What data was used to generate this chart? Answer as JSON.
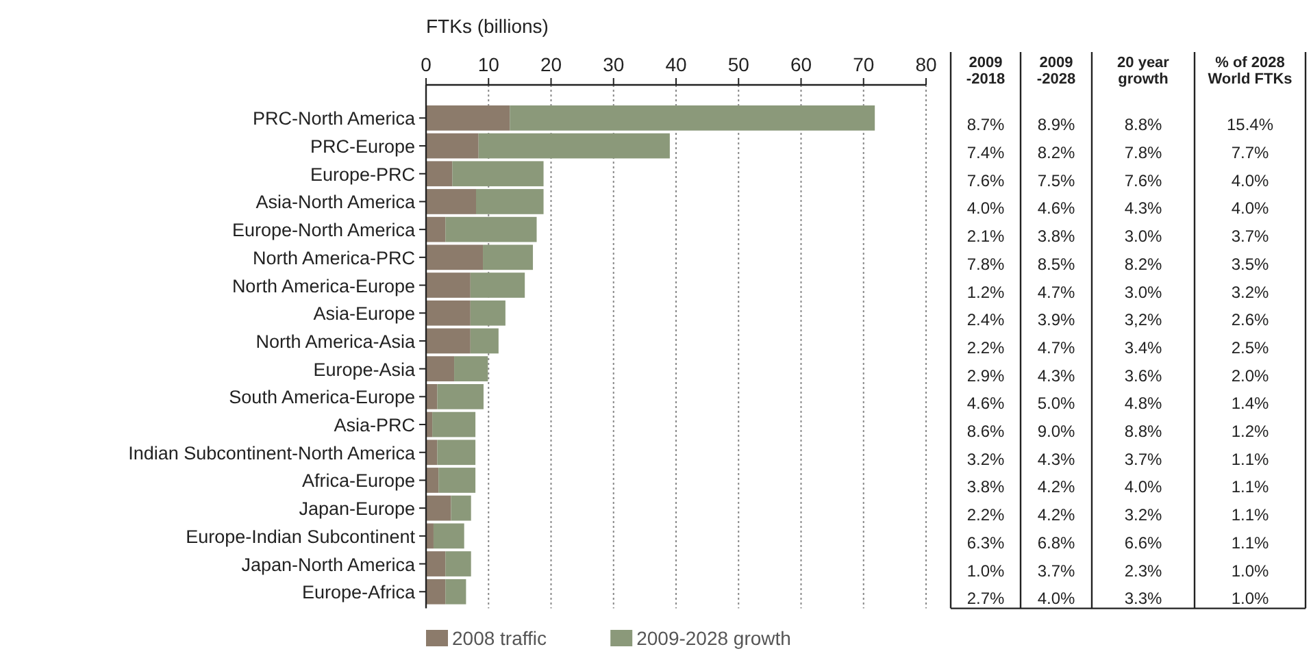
{
  "chart_data": [
    {
      "type": "bar",
      "orientation": "horizontal",
      "stacked": true,
      "xlabel": "FTKs (billions)",
      "categories": [
        "PRC-North America",
        "PRC-Europe",
        "Europe-PRC",
        "Asia-North America",
        "Europe-North America",
        "North America-PRC",
        "North America-Europe",
        "Asia-Europe",
        "North America-Asia",
        "Europe-Asia",
        "South America-Europe",
        "Asia-PRC",
        "Indian Subcontinent-North America",
        "Africa-Europe",
        "Japan-Europe",
        "Europe-Indian Subcontinent",
        "Japan-North America",
        "Europe-Africa"
      ],
      "series": [
        {
          "name": "2008 traffic",
          "color": "#8c7b6b",
          "values": [
            13.4,
            8.4,
            4.2,
            8.0,
            3.1,
            9.1,
            7.1,
            7.1,
            7.1,
            4.5,
            1.8,
            1.0,
            1.8,
            2.0,
            4.0,
            1.2,
            3.1,
            3.1
          ]
        },
        {
          "name": "2009-2028 growth",
          "color": "#8b997a",
          "values": [
            58.4,
            30.6,
            14.6,
            10.8,
            14.6,
            8.0,
            8.7,
            5.6,
            4.5,
            5.4,
            7.4,
            6.9,
            6.1,
            5.9,
            3.2,
            4.9,
            4.1,
            3.3
          ]
        }
      ],
      "xlim": [
        0,
        80
      ],
      "xticks": [
        0,
        10,
        20,
        30,
        40,
        50,
        60,
        70,
        80
      ],
      "grid": "x",
      "legend": "bottom"
    },
    {
      "type": "other",
      "categories": [
        "2009 -2018",
        "2009 -2028",
        "20 year growth",
        "% of 2028 World FTKs"
      ],
      "cell_labels": [
        [
          "8.7%",
          "8.9%",
          "8.8%",
          "15.4%"
        ],
        [
          "7.4%",
          "8.2%",
          "7.8%",
          "7.7%"
        ],
        [
          "7.6%",
          "7.5%",
          "7.6%",
          "4.0%"
        ],
        [
          "4.0%",
          "4.6%",
          "4.3%",
          "4.0%"
        ],
        [
          "2.1%",
          "3.8%",
          "3.0%",
          "3.7%"
        ],
        [
          "7.8%",
          "8.5%",
          "8.2%",
          "3.5%"
        ],
        [
          "1.2%",
          "4.7%",
          "3.0%",
          "3.2%"
        ],
        [
          "2.4%",
          "3.9%",
          "3,2%",
          "2.6%"
        ],
        [
          "2.2%",
          "4.7%",
          "3.4%",
          "2.5%"
        ],
        [
          "2.9%",
          "4.3%",
          "3.6%",
          "2.0%"
        ],
        [
          "4.6%",
          "5.0%",
          "4.8%",
          "1.4%"
        ],
        [
          "8.6%",
          "9.0%",
          "8.8%",
          "1.2%"
        ],
        [
          "3.2%",
          "4.3%",
          "3.7%",
          "1.1%"
        ],
        [
          "3.8%",
          "4.2%",
          "4.0%",
          "1.1%"
        ],
        [
          "2.2%",
          "4.2%",
          "3.2%",
          "1.1%"
        ],
        [
          "6.3%",
          "6.8%",
          "6.6%",
          "1.1%"
        ],
        [
          "1.0%",
          "3.7%",
          "2.3%",
          "1.0%"
        ],
        [
          "2.7%",
          "4.0%",
          "3.3%",
          "1.0%"
        ]
      ]
    }
  ]
}
